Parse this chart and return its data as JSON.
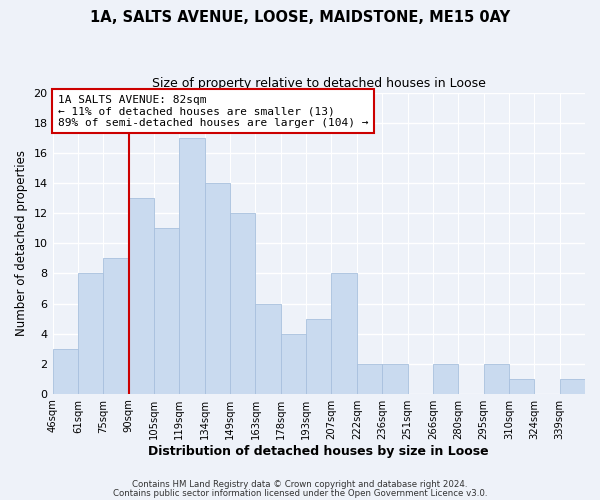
{
  "title": "1A, SALTS AVENUE, LOOSE, MAIDSTONE, ME15 0AY",
  "subtitle": "Size of property relative to detached houses in Loose",
  "xlabel": "Distribution of detached houses by size in Loose",
  "ylabel": "Number of detached properties",
  "bar_color": "#c9daef",
  "bar_edge_color": "#a8c0de",
  "bins": [
    "46sqm",
    "61sqm",
    "75sqm",
    "90sqm",
    "105sqm",
    "119sqm",
    "134sqm",
    "149sqm",
    "163sqm",
    "178sqm",
    "193sqm",
    "207sqm",
    "222sqm",
    "236sqm",
    "251sqm",
    "266sqm",
    "280sqm",
    "295sqm",
    "310sqm",
    "324sqm",
    "339sqm"
  ],
  "values": [
    3,
    8,
    9,
    13,
    11,
    17,
    14,
    12,
    6,
    4,
    5,
    8,
    2,
    2,
    0,
    2,
    0,
    2,
    1,
    0,
    1
  ],
  "ylim": [
    0,
    20
  ],
  "yticks": [
    0,
    2,
    4,
    6,
    8,
    10,
    12,
    14,
    16,
    18,
    20
  ],
  "vline_color": "#cc0000",
  "annotation_title": "1A SALTS AVENUE: 82sqm",
  "annotation_line1": "← 11% of detached houses are smaller (13)",
  "annotation_line2": "89% of semi-detached houses are larger (104) →",
  "annotation_box_color": "#ffffff",
  "annotation_box_edge": "#cc0000",
  "footer1": "Contains HM Land Registry data © Crown copyright and database right 2024.",
  "footer2": "Contains public sector information licensed under the Open Government Licence v3.0.",
  "background_color": "#eef2f9",
  "plot_background": "#eef2f9",
  "grid_color": "#ffffff"
}
